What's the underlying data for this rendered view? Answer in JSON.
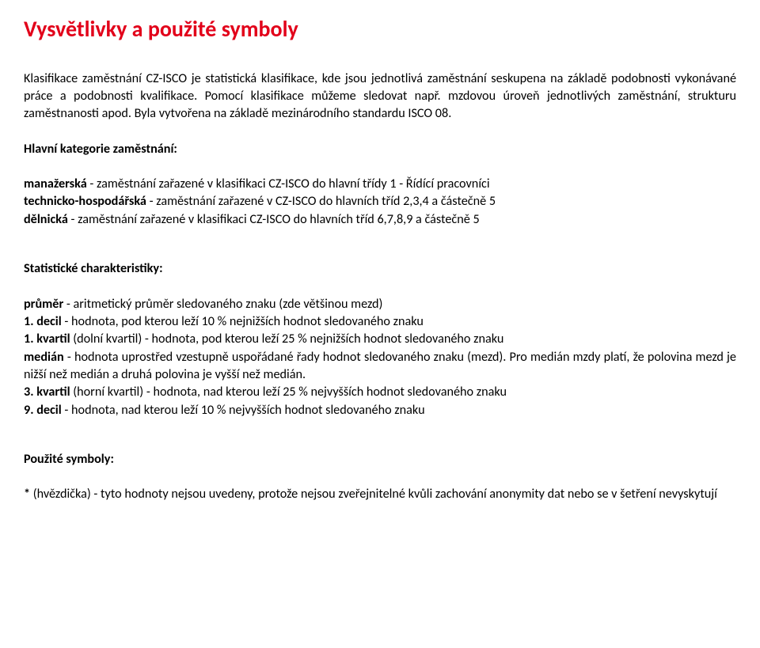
{
  "title": "Vysvětlivky a použité symboly",
  "intro": "Klasifikace zaměstnání CZ-ISCO je statistická klasifikace, kde jsou jednotlivá zaměstnání seskupena na základě podobnosti vykonávané práce a podobnosti kvalifikace. Pomocí klasifikace můžeme sledovat např. mzdovou úroveň jednotlivých zaměstnání, strukturu zaměstnanosti apod. Byla vytvořena na základě mezinárodního standardu ISCO 08.",
  "categories_label": "Hlavní kategorie zaměstnání:",
  "categories": {
    "managerial_name": "manažerská",
    "managerial_desc": " - zaměstnání zařazené v klasifikaci CZ-ISCO do hlavní třídy 1 - Řídící pracovníci",
    "technical_name": "technicko-hospodářská",
    "technical_desc": " - zaměstnání zařazené v CZ-ISCO do hlavních tříd 2,3,4 a částečně 5",
    "worker_name": "dělnická",
    "worker_desc": " - zaměstnání zařazené v klasifikaci CZ-ISCO do hlavních tříd 6,7,8,9 a částečně 5"
  },
  "stats_label": "Statistické charakteristiky:",
  "stats": {
    "mean_name": "průměr",
    "mean_desc": " - aritmetický průměr sledovaného znaku (zde většinou mezd)",
    "d1_name": "1. decil",
    "d1_desc": " - hodnota, pod kterou leží 10 % nejnižších hodnot sledovaného znaku",
    "q1_name": "1. kvartil",
    "q1_desc": " (dolní kvartil) - hodnota, pod kterou leží 25 % nejnižších hodnot sledovaného znaku",
    "median_name": "medián",
    "median_desc": " - hodnota uprostřed vzestupně uspořádané řady hodnot sledovaného znaku (mezd). Pro medián mzdy platí, že polovina mezd je nižší než medián a druhá polovina je vyšší než medián.",
    "q3_name": "3. kvartil",
    "q3_desc": " (horní kvartil) - hodnota, nad kterou leží 25 % nejvyšších hodnot sledovaného znaku",
    "d9_name": "9. decil",
    "d9_desc": " - hodnota, nad kterou leží 10 % nejvyšších hodnot sledovaného znaku"
  },
  "symbols_label": "Použité symboly:",
  "symbols": {
    "asterisk_name": "*",
    "asterisk_desc": " (hvězdička) - tyto hodnoty nejsou uvedeny, protože nejsou zveřejnitelné kvůli zachování anonymity dat nebo se v šetření nevyskytují"
  },
  "colors": {
    "title": "#e2001a",
    "text": "#000000",
    "background": "#ffffff"
  }
}
